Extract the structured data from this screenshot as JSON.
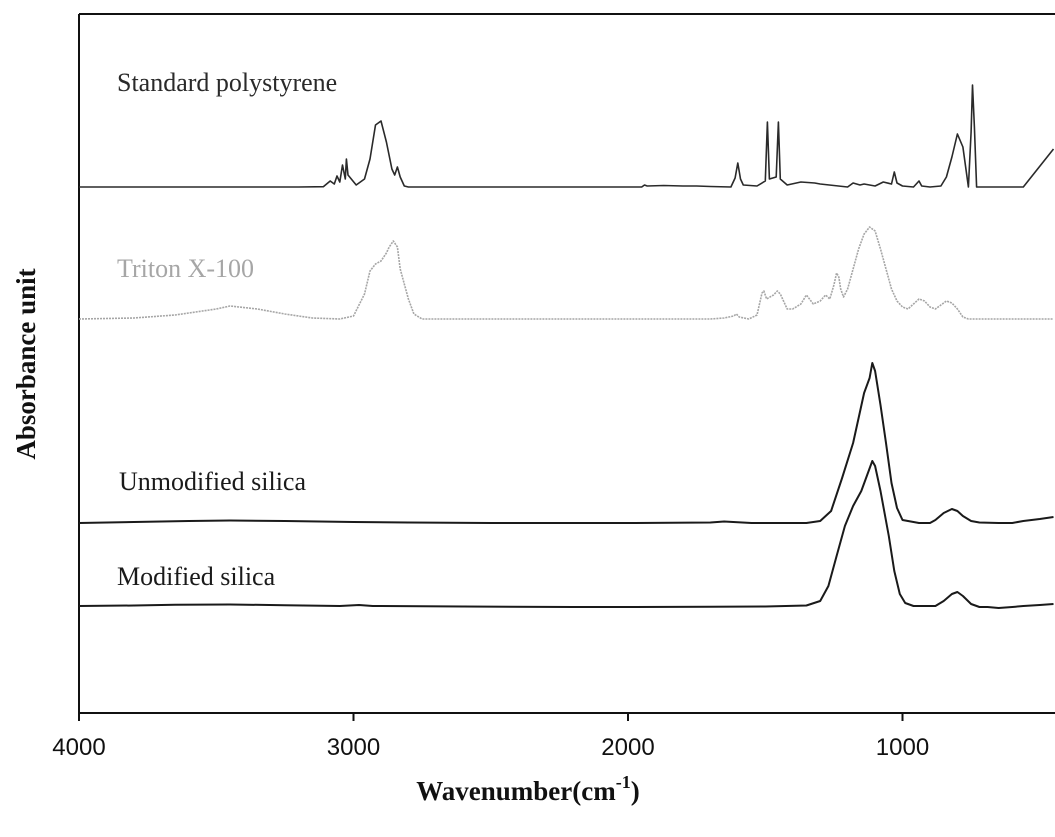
{
  "chart_data": {
    "type": "line",
    "xlabel": "Wavenumber(cm",
    "xlabel_sup": "-1",
    "xlabel_close": ")",
    "ylabel": "Absorbance unit",
    "xlim": [
      4000,
      450
    ],
    "x_reversed": true,
    "x_ticks": [
      4000,
      3000,
      2000,
      1000
    ],
    "x_tick_labels": [
      "4000",
      "3000",
      "2000",
      "1000"
    ],
    "y_ticks_visible": false,
    "grid": false,
    "series": [
      {
        "name": "Standard polystyrene",
        "color": "#2a2a2a",
        "points": [
          [
            4000,
            0
          ],
          [
            3200,
            0
          ],
          [
            3110,
            0.3
          ],
          [
            3085,
            6
          ],
          [
            3070,
            3
          ],
          [
            3060,
            11
          ],
          [
            3050,
            5
          ],
          [
            3040,
            22
          ],
          [
            3030,
            8
          ],
          [
            3026,
            28
          ],
          [
            3020,
            12
          ],
          [
            2990,
            2
          ],
          [
            2960,
            8
          ],
          [
            2940,
            28
          ],
          [
            2920,
            62
          ],
          [
            2900,
            66
          ],
          [
            2880,
            45
          ],
          [
            2860,
            18
          ],
          [
            2850,
            12
          ],
          [
            2840,
            20
          ],
          [
            2830,
            10
          ],
          [
            2815,
            1
          ],
          [
            2800,
            0
          ],
          [
            1950,
            0
          ],
          [
            1940,
            2
          ],
          [
            1930,
            1
          ],
          [
            1870,
            1.5
          ],
          [
            1800,
            1
          ],
          [
            1750,
            1
          ],
          [
            1700,
            0.5
          ],
          [
            1625,
            0
          ],
          [
            1610,
            9
          ],
          [
            1600,
            24
          ],
          [
            1590,
            8
          ],
          [
            1580,
            2
          ],
          [
            1530,
            1
          ],
          [
            1500,
            6
          ],
          [
            1492,
            65
          ],
          [
            1485,
            8
          ],
          [
            1460,
            10
          ],
          [
            1452,
            65
          ],
          [
            1445,
            8
          ],
          [
            1420,
            2
          ],
          [
            1370,
            5
          ],
          [
            1320,
            4
          ],
          [
            1300,
            3
          ],
          [
            1200,
            0
          ],
          [
            1180,
            4
          ],
          [
            1155,
            2
          ],
          [
            1140,
            3
          ],
          [
            1100,
            1
          ],
          [
            1070,
            5
          ],
          [
            1040,
            3
          ],
          [
            1030,
            15
          ],
          [
            1020,
            4
          ],
          [
            1000,
            1
          ],
          [
            960,
            0
          ],
          [
            940,
            6
          ],
          [
            930,
            1
          ],
          [
            900,
            0
          ],
          [
            860,
            1
          ],
          [
            840,
            10
          ],
          [
            820,
            30
          ],
          [
            800,
            53
          ],
          [
            780,
            40
          ],
          [
            760,
            0
          ],
          [
            750,
            55
          ],
          [
            745,
            102
          ],
          [
            738,
            60
          ],
          [
            730,
            0
          ],
          [
            600,
            0
          ],
          [
            560,
            0
          ],
          [
            450,
            38
          ]
        ]
      },
      {
        "name": "Triton X-100",
        "color": "#a6a6a6",
        "points": [
          [
            4000,
            0
          ],
          [
            3800,
            1
          ],
          [
            3650,
            4
          ],
          [
            3500,
            10
          ],
          [
            3450,
            13
          ],
          [
            3350,
            10
          ],
          [
            3250,
            5
          ],
          [
            3150,
            1
          ],
          [
            3050,
            0
          ],
          [
            3000,
            3
          ],
          [
            2960,
            25
          ],
          [
            2940,
            48
          ],
          [
            2920,
            55
          ],
          [
            2900,
            58
          ],
          [
            2880,
            66
          ],
          [
            2870,
            72
          ],
          [
            2855,
            78
          ],
          [
            2840,
            72
          ],
          [
            2830,
            50
          ],
          [
            2800,
            20
          ],
          [
            2780,
            5
          ],
          [
            2750,
            0
          ],
          [
            1700,
            0
          ],
          [
            1650,
            1
          ],
          [
            1615,
            3
          ],
          [
            1605,
            5
          ],
          [
            1595,
            2
          ],
          [
            1560,
            0
          ],
          [
            1530,
            4
          ],
          [
            1512,
            26
          ],
          [
            1505,
            28
          ],
          [
            1495,
            20
          ],
          [
            1470,
            24
          ],
          [
            1456,
            28
          ],
          [
            1445,
            25
          ],
          [
            1420,
            10
          ],
          [
            1400,
            10
          ],
          [
            1370,
            15
          ],
          [
            1350,
            24
          ],
          [
            1325,
            15
          ],
          [
            1300,
            18
          ],
          [
            1280,
            24
          ],
          [
            1265,
            20
          ],
          [
            1250,
            34
          ],
          [
            1240,
            46
          ],
          [
            1232,
            42
          ],
          [
            1225,
            30
          ],
          [
            1215,
            22
          ],
          [
            1200,
            30
          ],
          [
            1180,
            50
          ],
          [
            1160,
            70
          ],
          [
            1140,
            85
          ],
          [
            1120,
            92
          ],
          [
            1100,
            88
          ],
          [
            1080,
            70
          ],
          [
            1060,
            50
          ],
          [
            1040,
            30
          ],
          [
            1020,
            18
          ],
          [
            1000,
            12
          ],
          [
            980,
            10
          ],
          [
            960,
            15
          ],
          [
            940,
            20
          ],
          [
            920,
            18
          ],
          [
            900,
            12
          ],
          [
            880,
            10
          ],
          [
            860,
            14
          ],
          [
            840,
            18
          ],
          [
            820,
            16
          ],
          [
            800,
            10
          ],
          [
            780,
            2
          ],
          [
            760,
            0
          ],
          [
            450,
            0
          ]
        ]
      },
      {
        "name": "Unmodified silica",
        "color": "#1a1a1a",
        "points": [
          [
            4000,
            0
          ],
          [
            3800,
            1
          ],
          [
            3600,
            2
          ],
          [
            3450,
            2.5
          ],
          [
            3250,
            2
          ],
          [
            3000,
            1
          ],
          [
            2800,
            0.5
          ],
          [
            2500,
            0
          ],
          [
            2000,
            0
          ],
          [
            1700,
            0.5
          ],
          [
            1650,
            1.5
          ],
          [
            1550,
            0
          ],
          [
            1350,
            0
          ],
          [
            1300,
            2
          ],
          [
            1260,
            12
          ],
          [
            1220,
            45
          ],
          [
            1180,
            80
          ],
          [
            1160,
            105
          ],
          [
            1140,
            130
          ],
          [
            1120,
            145
          ],
          [
            1110,
            160
          ],
          [
            1100,
            152
          ],
          [
            1080,
            118
          ],
          [
            1060,
            80
          ],
          [
            1040,
            40
          ],
          [
            1020,
            15
          ],
          [
            1000,
            3
          ],
          [
            940,
            0
          ],
          [
            900,
            0
          ],
          [
            880,
            3
          ],
          [
            850,
            10
          ],
          [
            820,
            14
          ],
          [
            800,
            12
          ],
          [
            780,
            7
          ],
          [
            750,
            2
          ],
          [
            720,
            0.5
          ],
          [
            650,
            0
          ],
          [
            600,
            0
          ],
          [
            560,
            2
          ],
          [
            500,
            4
          ],
          [
            450,
            6
          ]
        ]
      },
      {
        "name": "Modified silica",
        "color": "#1a1a1a",
        "points": [
          [
            4000,
            0
          ],
          [
            3800,
            0.5
          ],
          [
            3650,
            1.2
          ],
          [
            3450,
            1.5
          ],
          [
            3250,
            0.8
          ],
          [
            3050,
            0
          ],
          [
            2980,
            1
          ],
          [
            2930,
            0
          ],
          [
            2600,
            -0.5
          ],
          [
            2200,
            -1
          ],
          [
            2000,
            -1
          ],
          [
            1700,
            -0.8
          ],
          [
            1500,
            -0.5
          ],
          [
            1350,
            0.5
          ],
          [
            1300,
            5
          ],
          [
            1270,
            20
          ],
          [
            1240,
            50
          ],
          [
            1210,
            80
          ],
          [
            1180,
            100
          ],
          [
            1150,
            115
          ],
          [
            1130,
            130
          ],
          [
            1110,
            145
          ],
          [
            1100,
            140
          ],
          [
            1080,
            115
          ],
          [
            1050,
            70
          ],
          [
            1030,
            35
          ],
          [
            1010,
            12
          ],
          [
            990,
            3
          ],
          [
            960,
            0
          ],
          [
            920,
            0
          ],
          [
            880,
            0
          ],
          [
            850,
            5
          ],
          [
            820,
            12
          ],
          [
            800,
            14
          ],
          [
            780,
            10
          ],
          [
            750,
            2
          ],
          [
            720,
            -1
          ],
          [
            690,
            -1
          ],
          [
            650,
            -2
          ],
          [
            600,
            -1
          ],
          [
            560,
            0
          ],
          [
            500,
            1
          ],
          [
            450,
            2
          ]
        ]
      }
    ]
  }
}
